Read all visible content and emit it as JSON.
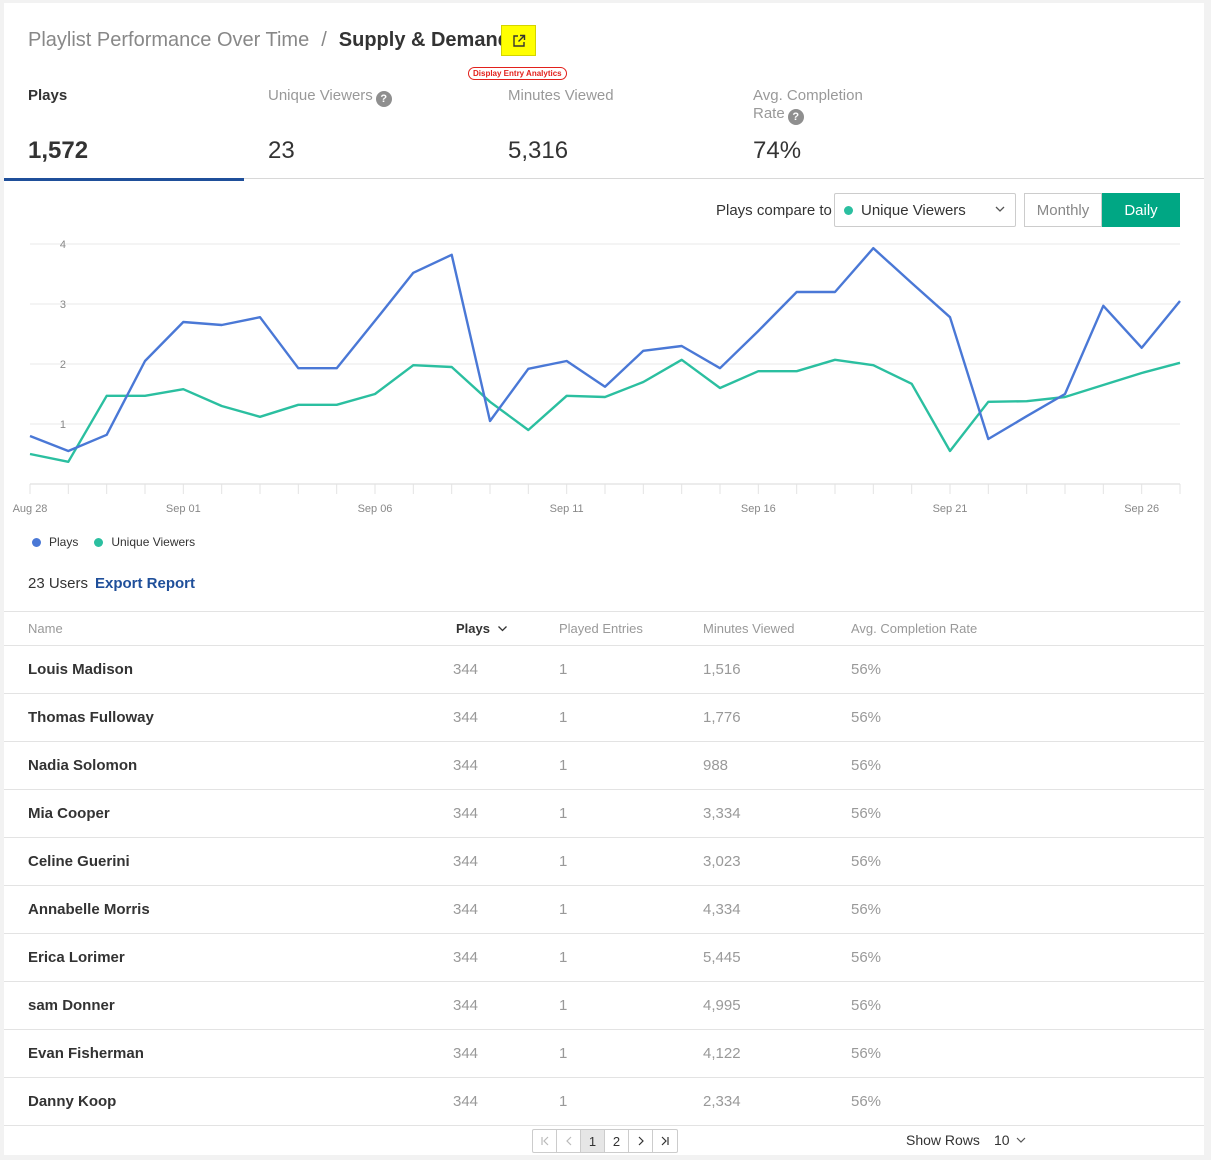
{
  "breadcrumb": {
    "parent": "Playlist Performance Over Time",
    "separator": "/",
    "current": "Supply & Demand"
  },
  "external_link_icon": "external-link-icon",
  "annotation_tag": "Display Entry Analytics",
  "kpis": [
    {
      "title": "Plays",
      "value": "1,572",
      "help": false,
      "active": true
    },
    {
      "title": "Unique Viewers",
      "value": "23",
      "help": true,
      "active": false
    },
    {
      "title": "Minutes Viewed",
      "value": "5,316",
      "help": false,
      "active": false
    },
    {
      "title_line1": "Avg. Completion",
      "title_line2": "Rate",
      "value": "74%",
      "help": true,
      "active": false
    }
  ],
  "compare": {
    "label": "Plays compare to",
    "selected": "Unique Viewers",
    "periods": [
      "Monthly",
      "Daily"
    ],
    "active_period": "Daily"
  },
  "colors": {
    "plays": "#4a78d6",
    "unique_viewers": "#2bbfa0",
    "accent": "#00a784",
    "link": "#1f4f9a"
  },
  "chart_data": {
    "type": "line",
    "x_tick_labels": [
      "Aug 28",
      "Sep 01",
      "Sep 06",
      "Sep 11",
      "Sep 16",
      "Sep 21",
      "Sep 26"
    ],
    "y_tick_labels": [
      "1",
      "2",
      "3",
      "4"
    ],
    "ylim": [
      0,
      4
    ],
    "grid": true,
    "legend_position": "bottom-left",
    "x": [
      "Aug 28",
      "Aug 29",
      "Aug 30",
      "Aug 31",
      "Sep 01",
      "Sep 02",
      "Sep 03",
      "Sep 04",
      "Sep 05",
      "Sep 06",
      "Sep 07",
      "Sep 08",
      "Sep 09",
      "Sep 10",
      "Sep 11",
      "Sep 12",
      "Sep 13",
      "Sep 14",
      "Sep 15",
      "Sep 16",
      "Sep 17",
      "Sep 18",
      "Sep 19",
      "Sep 20",
      "Sep 21",
      "Sep 22",
      "Sep 23",
      "Sep 24",
      "Sep 25",
      "Sep 26",
      "Sep 27"
    ],
    "series": [
      {
        "name": "Plays",
        "values": [
          0.8,
          0.55,
          0.82,
          2.05,
          2.7,
          2.65,
          2.78,
          1.93,
          1.93,
          2.72,
          3.52,
          3.82,
          1.05,
          1.92,
          2.05,
          1.62,
          2.22,
          2.3,
          1.93,
          2.55,
          3.2,
          3.2,
          3.93,
          3.35,
          2.78,
          0.75,
          1.13,
          1.5,
          2.97,
          2.27,
          3.05
        ]
      },
      {
        "name": "Unique Viewers",
        "values": [
          0.5,
          0.37,
          1.47,
          1.47,
          1.58,
          1.3,
          1.12,
          1.32,
          1.32,
          1.5,
          1.98,
          1.95,
          1.37,
          0.9,
          1.47,
          1.45,
          1.7,
          2.07,
          1.6,
          1.88,
          1.88,
          2.07,
          1.98,
          1.67,
          0.55,
          1.37,
          1.38,
          1.45,
          1.65,
          1.85,
          2.02
        ]
      }
    ]
  },
  "legend": [
    "Plays",
    "Unique Viewers"
  ],
  "users": {
    "count_label": "23 Users",
    "export_label": "Export Report",
    "columns": [
      "Name",
      "Plays",
      "Played Entries",
      "Minutes Viewed",
      "Avg. Completion Rate"
    ],
    "rows": [
      {
        "name": "Louis Madison",
        "plays": "344",
        "entries": "1",
        "minutes": "1,516",
        "rate": "56%"
      },
      {
        "name": "Thomas Fulloway",
        "plays": "344",
        "entries": "1",
        "minutes": "1,776",
        "rate": "56%"
      },
      {
        "name": "Nadia Solomon",
        "plays": "344",
        "entries": "1",
        "minutes": "988",
        "rate": "56%"
      },
      {
        "name": "Mia Cooper",
        "plays": "344",
        "entries": "1",
        "minutes": "3,334",
        "rate": "56%"
      },
      {
        "name": "Celine Guerini",
        "plays": "344",
        "entries": "1",
        "minutes": "3,023",
        "rate": "56%"
      },
      {
        "name": "Annabelle Morris",
        "plays": "344",
        "entries": "1",
        "minutes": "4,334",
        "rate": "56%"
      },
      {
        "name": "Erica Lorimer",
        "plays": "344",
        "entries": "1",
        "minutes": "5,445",
        "rate": "56%"
      },
      {
        "name": "sam Donner",
        "plays": "344",
        "entries": "1",
        "minutes": "4,995",
        "rate": "56%"
      },
      {
        "name": "Evan Fisherman",
        "plays": "344",
        "entries": "1",
        "minutes": "4,122",
        "rate": "56%"
      },
      {
        "name": "Danny Koop",
        "plays": "344",
        "entries": "1",
        "minutes": "2,334",
        "rate": "56%"
      }
    ]
  },
  "pagination": {
    "pages": [
      "1",
      "2"
    ],
    "current": "1",
    "show_rows_label": "Show Rows",
    "rows_per_page": "10"
  }
}
